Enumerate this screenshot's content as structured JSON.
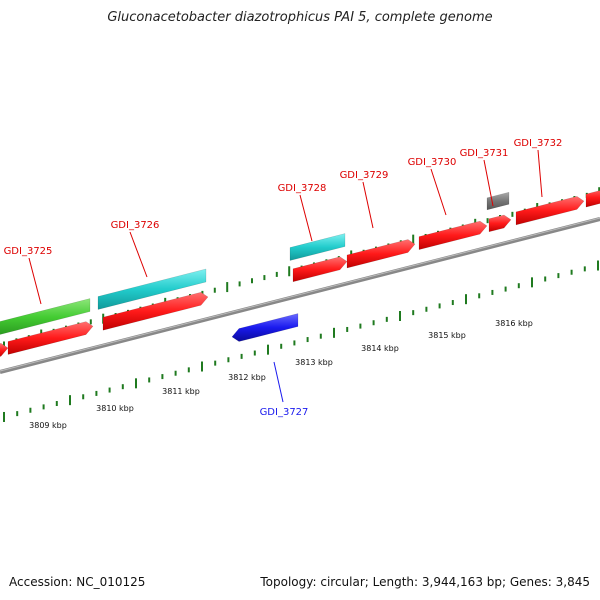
{
  "title": "Gluconacetobacter diazotrophicus PAI 5, complete genome",
  "footer": {
    "accession": "Accession: NC_010125",
    "summary": "Topology: circular; Length: 3,944,163 bp; Genes: 3,845"
  },
  "colors": {
    "forward_gene": "#ff2020",
    "reverse_gene": "#1a1aee",
    "cyan_feature": "#22cccc",
    "green_feature": "#44cc33",
    "gray_feature": "#777777",
    "tick": "#1f7a1f",
    "backbone": "#888888"
  },
  "kbp_labels": [
    "3809 kbp",
    "3810 kbp",
    "3811 kbp",
    "3812 kbp",
    "3813 kbp",
    "3814 kbp",
    "3815 kbp",
    "3816 kbp"
  ],
  "gene_labels": [
    {
      "text": "GDI_3725",
      "strand": "forward"
    },
    {
      "text": "GDI_3726",
      "strand": "forward"
    },
    {
      "text": "GDI_3728",
      "strand": "forward"
    },
    {
      "text": "GDI_3729",
      "strand": "forward"
    },
    {
      "text": "GDI_3730",
      "strand": "forward"
    },
    {
      "text": "GDI_3731",
      "strand": "forward"
    },
    {
      "text": "GDI_3732",
      "strand": "forward"
    },
    {
      "text": "GDI_3727",
      "strand": "reverse"
    }
  ]
}
